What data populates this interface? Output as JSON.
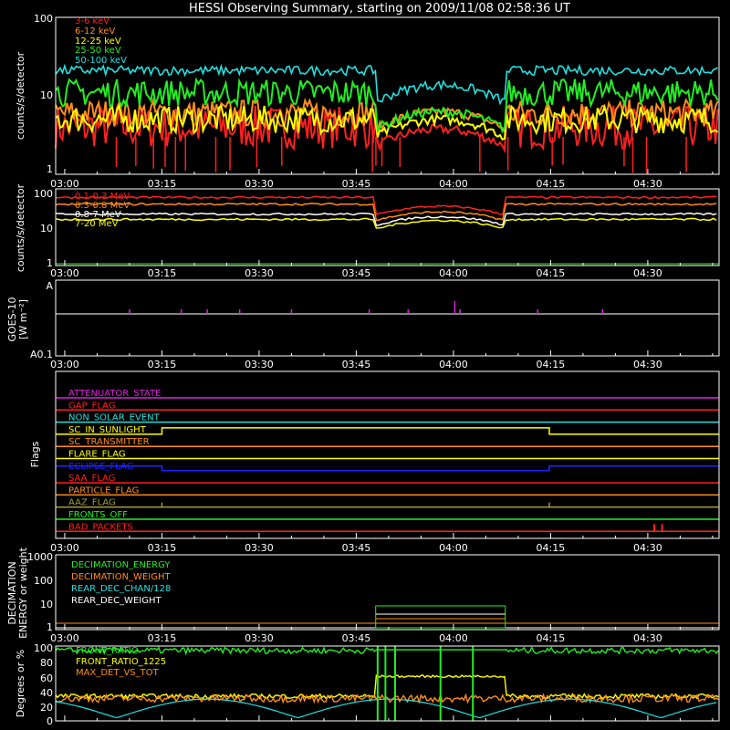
{
  "title": "HESSI Observing Summary, starting on 2009/11/08 02:58:36 UT",
  "colors": {
    "red": "#ff2020",
    "orange": "#ff8c1a",
    "yellow": "#ffff00",
    "green": "#22ee22",
    "cyan": "#22e0e0",
    "magenta": "#e020e0",
    "white": "#ffffff",
    "gray": "#b0b0b0",
    "blue": "#2222ff",
    "olive": "#a09a3a"
  },
  "time_ticks": [
    "03:00",
    "03:15",
    "03:30",
    "03:45",
    "04:00",
    "04:15",
    "04:30"
  ],
  "chart_data": [
    {
      "type": "line",
      "ylabel": "counts/s/detector",
      "y_scale": "log",
      "ylim": [
        1,
        100
      ],
      "ytick_labels": [
        "100",
        "10",
        "1"
      ],
      "series": [
        {
          "name": "3-6 keV",
          "color": "#ff2020",
          "base": 4,
          "eclipse": 3
        },
        {
          "name": "6-12 keV",
          "color": "#ff8c1a",
          "base": 6,
          "eclipse": 5
        },
        {
          "name": "12-25 keV",
          "color": "#ffff00",
          "base": 5,
          "eclipse": 4
        },
        {
          "name": "25-50 keV",
          "color": "#22ee22",
          "base": 11,
          "eclipse": 5
        },
        {
          "name": "50-100 keV",
          "color": "#22e0e0",
          "base": 21,
          "eclipse": 11
        }
      ]
    },
    {
      "type": "line",
      "ylabel": "counts/s/detector",
      "y_scale": "log",
      "ylim": [
        1,
        100
      ],
      "ytick_labels": [
        "100",
        "10",
        "1"
      ],
      "series": [
        {
          "name": "0.1-0.3 MeV",
          "color": "#ff2020",
          "base": 60,
          "eclipse": 28
        },
        {
          "name": "0.3-0.8 MeV",
          "color": "#ff8c1a",
          "base": 40,
          "eclipse": 20
        },
        {
          "name": "0.8-7 MeV",
          "color": "#ffffff",
          "base": 22,
          "eclipse": 15
        },
        {
          "name": "7-20 MeV",
          "color": "#ffff00",
          "base": 16,
          "eclipse": 12
        }
      ]
    },
    {
      "type": "line",
      "ylabel": "GOES-10",
      "ylabel2": "[W m⁻²]",
      "ytick_labels": [
        "A",
        "A0.1"
      ],
      "series": [
        {
          "color": "#b0b0b0"
        },
        {
          "color": "#e020e0"
        }
      ]
    },
    {
      "type": "line",
      "ylabel": "Flags",
      "flags": [
        {
          "name": "ATTENUATOR_STATE",
          "color": "#e020e0"
        },
        {
          "name": "GAP_FLAG",
          "color": "#ff2020"
        },
        {
          "name": "NON_SOLAR_EVENT",
          "color": "#22e0e0"
        },
        {
          "name": "SC_IN_SUNLIGHT",
          "color": "#ffff00"
        },
        {
          "name": "SC_TRANSMITTER",
          "color": "#ff8c1a"
        },
        {
          "name": "FLARE_FLAG",
          "color": "#ffff00"
        },
        {
          "name": "ECLIPSE_FLAG",
          "color": "#2222ff"
        },
        {
          "name": "SAA_FLAG",
          "color": "#ff2020"
        },
        {
          "name": "PARTICLE_FLAG",
          "color": "#ff8c1a"
        },
        {
          "name": "AAZ_FLAG",
          "color": "#a09a3a"
        },
        {
          "name": "FRONTS_OFF",
          "color": "#22ee22"
        },
        {
          "name": "BAD_PACKETS",
          "color": "#ff2020"
        }
      ]
    },
    {
      "type": "line",
      "ylabel": "DECIMATION",
      "ylabel2": "ENERGY or weight",
      "y_scale": "log",
      "ylim": [
        1,
        1000
      ],
      "ytick_labels": [
        "1000",
        "100",
        "10",
        "1"
      ],
      "series": [
        {
          "name": "DECIMATION_ENERGY",
          "color": "#22ee22"
        },
        {
          "name": "DECIMATION_WEIGHT",
          "color": "#ff8c1a"
        },
        {
          "name": "REAR_DEC_CHAN/128",
          "color": "#22e0e0"
        },
        {
          "name": "REAR_DEC_WEIGHT",
          "color": "#ffffff"
        }
      ]
    },
    {
      "type": "line",
      "ylabel": "Degrees or %",
      "ylim": [
        0,
        100
      ],
      "ytick_labels": [
        "100",
        "80",
        "60",
        "40",
        "20",
        "0"
      ],
      "series": [
        {
          "name": "FRONT_RATIO",
          "color": "#22ee22"
        },
        {
          "name": "FRONT_RATIO_1225",
          "color": "#ffff00"
        },
        {
          "name": "MAX_DET_VS_TOT",
          "color": "#ff8c1a"
        },
        {
          "color": "#22e0e0"
        }
      ]
    }
  ]
}
